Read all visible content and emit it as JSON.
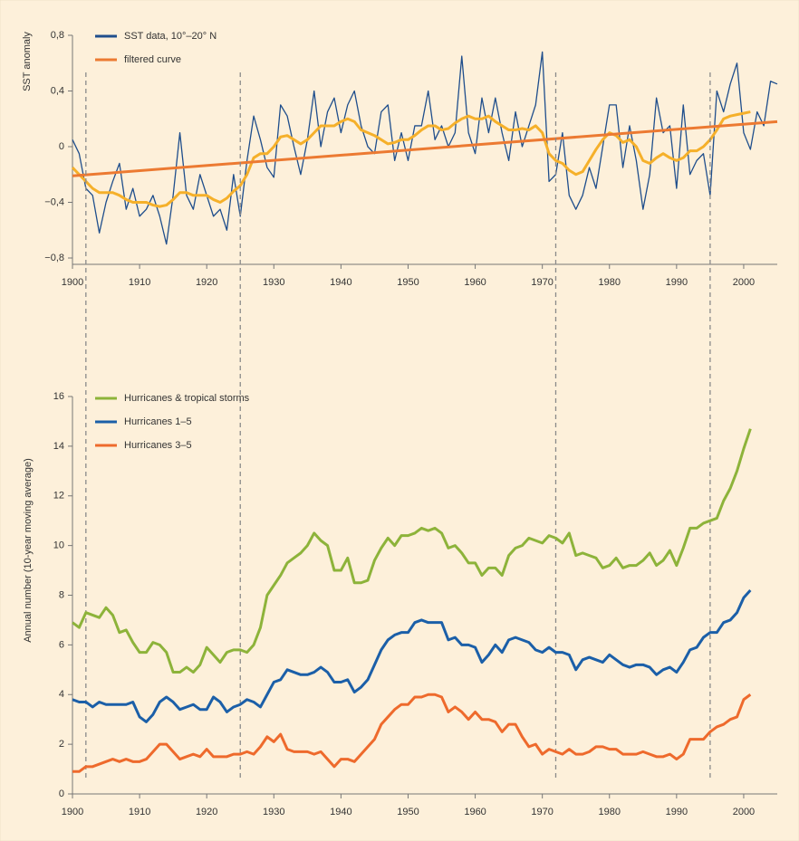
{
  "chart_data": [
    {
      "type": "line",
      "ylabel": "SST anomaly",
      "x": [
        1900,
        1901,
        1902,
        1903,
        1904,
        1905,
        1906,
        1907,
        1908,
        1909,
        1910,
        1911,
        1912,
        1913,
        1914,
        1915,
        1916,
        1917,
        1918,
        1919,
        1920,
        1921,
        1922,
        1923,
        1924,
        1925,
        1926,
        1927,
        1928,
        1929,
        1930,
        1931,
        1932,
        1933,
        1934,
        1935,
        1936,
        1937,
        1938,
        1939,
        1940,
        1941,
        1942,
        1943,
        1944,
        1945,
        1946,
        1947,
        1948,
        1949,
        1950,
        1951,
        1952,
        1953,
        1954,
        1955,
        1956,
        1957,
        1958,
        1959,
        1960,
        1961,
        1962,
        1963,
        1964,
        1965,
        1966,
        1967,
        1968,
        1969,
        1970,
        1971,
        1972,
        1973,
        1974,
        1975,
        1976,
        1977,
        1978,
        1979,
        1980,
        1981,
        1982,
        1983,
        1984,
        1985,
        1986,
        1987,
        1988,
        1989,
        1990,
        1991,
        1992,
        1993,
        1994,
        1995,
        1996,
        1997,
        1998,
        1999,
        2000,
        2001,
        2002,
        2003,
        2004,
        2005
      ],
      "series": [
        {
          "name": "SST data, 10°–20° N",
          "color": "#1f4e8c",
          "width": 1.3,
          "values": [
            0.05,
            -0.05,
            -0.3,
            -0.35,
            -0.62,
            -0.4,
            -0.25,
            -0.12,
            -0.45,
            -0.3,
            -0.5,
            -0.45,
            -0.35,
            -0.5,
            -0.7,
            -0.35,
            0.1,
            -0.35,
            -0.45,
            -0.2,
            -0.35,
            -0.5,
            -0.45,
            -0.6,
            -0.2,
            -0.5,
            -0.1,
            0.22,
            0.05,
            -0.15,
            -0.22,
            0.3,
            0.22,
            0.0,
            -0.2,
            0.05,
            0.4,
            0.0,
            0.25,
            0.35,
            0.1,
            0.3,
            0.4,
            0.15,
            0.0,
            -0.05,
            0.25,
            0.3,
            -0.1,
            0.1,
            -0.1,
            0.15,
            0.15,
            0.4,
            0.05,
            0.15,
            0.0,
            0.1,
            0.65,
            0.1,
            -0.05,
            0.35,
            0.1,
            0.35,
            0.1,
            -0.1,
            0.25,
            0.0,
            0.15,
            0.3,
            0.68,
            -0.25,
            -0.2,
            0.1,
            -0.35,
            -0.45,
            -0.35,
            -0.15,
            -0.3,
            0.0,
            0.3,
            0.3,
            -0.15,
            0.15,
            -0.1,
            -0.45,
            -0.2,
            0.35,
            0.1,
            0.15,
            -0.3,
            0.3,
            -0.2,
            -0.1,
            -0.05,
            -0.35,
            0.4,
            0.25,
            0.45,
            0.6,
            0.1,
            -0.02,
            0.25,
            0.15,
            0.47,
            0.45
          ]
        },
        {
          "color": "#f5b02a",
          "width": 3,
          "values": [
            -0.15,
            -0.2,
            -0.25,
            -0.3,
            -0.33,
            -0.33,
            -0.33,
            -0.35,
            -0.38,
            -0.4,
            -0.4,
            -0.4,
            -0.42,
            -0.43,
            -0.42,
            -0.38,
            -0.33,
            -0.33,
            -0.35,
            -0.35,
            -0.35,
            -0.38,
            -0.4,
            -0.37,
            -0.32,
            -0.28,
            -0.2,
            -0.08,
            -0.05,
            -0.05,
            0.0,
            0.07,
            0.08,
            0.05,
            0.02,
            0.05,
            0.1,
            0.15,
            0.15,
            0.15,
            0.18,
            0.2,
            0.18,
            0.12,
            0.1,
            0.08,
            0.05,
            0.02,
            0.03,
            0.05,
            0.05,
            0.08,
            0.12,
            0.15,
            0.15,
            0.12,
            0.13,
            0.17,
            0.2,
            0.22,
            0.2,
            0.2,
            0.22,
            0.18,
            0.15,
            0.12,
            0.12,
            0.13,
            0.12,
            0.15,
            0.1,
            -0.05,
            -0.1,
            -0.12,
            -0.17,
            -0.2,
            -0.18,
            -0.1,
            -0.02,
            0.05,
            0.1,
            0.08,
            0.03,
            0.05,
            0.0,
            -0.1,
            -0.12,
            -0.08,
            -0.05,
            -0.08,
            -0.1,
            -0.08,
            -0.03,
            -0.03,
            0.0,
            0.05,
            0.12,
            0.2,
            0.22,
            0.23,
            0.24,
            0.25,
            null,
            null,
            null,
            null
          ]
        },
        {
          "name": "filtered curve",
          "color": "#ec7a32",
          "width": 3,
          "x": [
            1900,
            2005
          ],
          "values": [
            -0.21,
            0.18
          ]
        }
      ],
      "xlim": [
        1900,
        2005
      ],
      "xticks": [
        1900,
        1910,
        1920,
        1930,
        1940,
        1950,
        1960,
        1970,
        1980,
        1990,
        2000
      ],
      "ylim": [
        -0.8,
        0.8
      ],
      "yticks": [
        {
          "value": -0.8,
          "label": "−0,8"
        },
        {
          "value": -0.4,
          "label": "−0,4"
        },
        0,
        {
          "value": 0.4,
          "label": "0,4"
        },
        {
          "value": 0.8,
          "label": "0,8"
        }
      ],
      "vlines": [
        1902,
        1925,
        1972,
        1995
      ]
    },
    {
      "type": "line",
      "ylabel": "Annual number (10-year moving average)",
      "x": [
        1900,
        1901,
        1902,
        1903,
        1904,
        1905,
        1906,
        1907,
        1908,
        1909,
        1910,
        1911,
        1912,
        1913,
        1914,
        1915,
        1916,
        1917,
        1918,
        1919,
        1920,
        1921,
        1922,
        1923,
        1924,
        1925,
        1926,
        1927,
        1928,
        1929,
        1930,
        1931,
        1932,
        1933,
        1934,
        1935,
        1936,
        1937,
        1938,
        1939,
        1940,
        1941,
        1942,
        1943,
        1944,
        1945,
        1946,
        1947,
        1948,
        1949,
        1950,
        1951,
        1952,
        1953,
        1954,
        1955,
        1956,
        1957,
        1958,
        1959,
        1960,
        1961,
        1962,
        1963,
        1964,
        1965,
        1966,
        1967,
        1968,
        1969,
        1970,
        1971,
        1972,
        1973,
        1974,
        1975,
        1976,
        1977,
        1978,
        1979,
        1980,
        1981,
        1982,
        1983,
        1984,
        1985,
        1986,
        1987,
        1988,
        1989,
        1990,
        1991,
        1992,
        1993,
        1994,
        1995,
        1996,
        1997,
        1998,
        1999,
        2000,
        2001
      ],
      "series": [
        {
          "name": "Hurricanes & tropical storms",
          "color": "#8db33a",
          "width": 3,
          "values": [
            6.9,
            6.7,
            7.3,
            7.2,
            7.1,
            7.5,
            7.2,
            6.5,
            6.6,
            6.1,
            5.7,
            5.7,
            6.1,
            6.0,
            5.7,
            4.9,
            4.9,
            5.1,
            4.9,
            5.2,
            5.9,
            5.6,
            5.3,
            5.7,
            5.8,
            5.8,
            5.7,
            6.0,
            6.7,
            8.0,
            8.4,
            8.8,
            9.3,
            9.5,
            9.7,
            10.0,
            10.5,
            10.2,
            10.0,
            9.0,
            9.0,
            9.5,
            8.5,
            8.5,
            8.6,
            9.4,
            9.9,
            10.3,
            10.0,
            10.4,
            10.4,
            10.5,
            10.7,
            10.6,
            10.7,
            10.5,
            9.9,
            10.0,
            9.7,
            9.3,
            9.3,
            8.8,
            9.1,
            9.1,
            8.8,
            9.6,
            9.9,
            10.0,
            10.3,
            10.2,
            10.1,
            10.4,
            10.3,
            10.1,
            10.5,
            9.6,
            9.7,
            9.6,
            9.5,
            9.1,
            9.2,
            9.5,
            9.1,
            9.2,
            9.2,
            9.4,
            9.7,
            9.2,
            9.4,
            9.8,
            9.2,
            9.9,
            10.7,
            10.7,
            10.9,
            11.0,
            11.1,
            11.8,
            12.3,
            13.0,
            13.9,
            14.7
          ]
        },
        {
          "name": "Hurricanes 1–5",
          "color": "#1b5fa8",
          "width": 3,
          "values": [
            3.8,
            3.7,
            3.7,
            3.5,
            3.7,
            3.6,
            3.6,
            3.6,
            3.6,
            3.7,
            3.1,
            2.9,
            3.2,
            3.7,
            3.9,
            3.7,
            3.4,
            3.5,
            3.6,
            3.4,
            3.4,
            3.9,
            3.7,
            3.3,
            3.5,
            3.6,
            3.8,
            3.7,
            3.5,
            4.0,
            4.5,
            4.6,
            5.0,
            4.9,
            4.8,
            4.8,
            4.9,
            5.1,
            4.9,
            4.5,
            4.5,
            4.6,
            4.1,
            4.3,
            4.6,
            5.2,
            5.8,
            6.2,
            6.4,
            6.5,
            6.5,
            6.9,
            7.0,
            6.9,
            6.9,
            6.9,
            6.2,
            6.3,
            6.0,
            6.0,
            5.9,
            5.3,
            5.6,
            6.0,
            5.7,
            6.2,
            6.3,
            6.2,
            6.1,
            5.8,
            5.7,
            5.9,
            5.7,
            5.7,
            5.6,
            5.0,
            5.4,
            5.5,
            5.4,
            5.3,
            5.6,
            5.4,
            5.2,
            5.1,
            5.2,
            5.2,
            5.1,
            4.8,
            5.0,
            5.1,
            4.9,
            5.3,
            5.8,
            5.9,
            6.3,
            6.5,
            6.5,
            6.9,
            7.0,
            7.3,
            7.9,
            8.2
          ]
        },
        {
          "name": "Hurricanes 3–5",
          "color": "#ee6a2c",
          "width": 3,
          "values": [
            0.9,
            0.9,
            1.1,
            1.1,
            1.2,
            1.3,
            1.4,
            1.3,
            1.4,
            1.3,
            1.3,
            1.4,
            1.7,
            2.0,
            2.0,
            1.7,
            1.4,
            1.5,
            1.6,
            1.5,
            1.8,
            1.5,
            1.5,
            1.5,
            1.6,
            1.6,
            1.7,
            1.6,
            1.9,
            2.3,
            2.1,
            2.4,
            1.8,
            1.7,
            1.7,
            1.7,
            1.6,
            1.7,
            1.4,
            1.1,
            1.4,
            1.4,
            1.3,
            1.6,
            1.9,
            2.2,
            2.8,
            3.1,
            3.4,
            3.6,
            3.6,
            3.9,
            3.9,
            4.0,
            4.0,
            3.9,
            3.3,
            3.5,
            3.3,
            3.0,
            3.3,
            3.0,
            3.0,
            2.9,
            2.5,
            2.8,
            2.8,
            2.3,
            1.9,
            2.0,
            1.6,
            1.8,
            1.7,
            1.6,
            1.8,
            1.6,
            1.6,
            1.7,
            1.9,
            1.9,
            1.8,
            1.8,
            1.6,
            1.6,
            1.6,
            1.7,
            1.6,
            1.5,
            1.5,
            1.6,
            1.4,
            1.6,
            2.2,
            2.2,
            2.2,
            2.5,
            2.7,
            2.8,
            3.0,
            3.1,
            3.8,
            4.0
          ]
        }
      ],
      "xlim": [
        1900,
        2005
      ],
      "xticks": [
        1900,
        1910,
        1920,
        1930,
        1940,
        1950,
        1960,
        1970,
        1980,
        1990,
        2000
      ],
      "ylim": [
        0,
        16
      ],
      "yticks": [
        0,
        2,
        4,
        6,
        8,
        10,
        12,
        14,
        16
      ]
    }
  ]
}
